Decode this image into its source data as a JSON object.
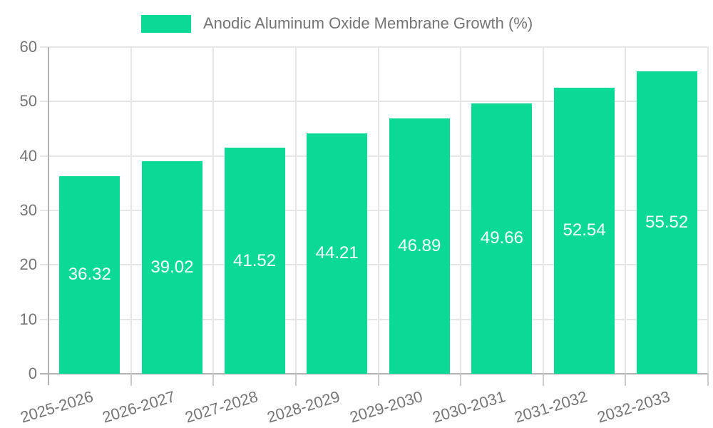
{
  "legend": {
    "label": "Anodic Aluminum Oxide Membrane Growth (%)"
  },
  "colors": {
    "bar": "#0bda96",
    "grid": "#e6e6e6",
    "axis": "#b3b3b3",
    "tick": "#cccccc",
    "axis_text": "#757575",
    "value_label_text": "#ffffff",
    "background": "#ffffff"
  },
  "chart_data": {
    "type": "bar",
    "title": "",
    "series_name": "Anodic Aluminum Oxide Membrane Growth (%)",
    "categories": [
      "2025-2026",
      "2026-2027",
      "2027-2028",
      "2028-2029",
      "2029-2030",
      "2030-2031",
      "2031-2032",
      "2032-2033"
    ],
    "values": [
      36.32,
      39.02,
      41.52,
      44.21,
      46.89,
      49.66,
      52.54,
      55.52
    ],
    "value_labels": [
      "36.32",
      "39.02",
      "41.52",
      "44.21",
      "46.89",
      "49.66",
      "52.54",
      "55.52"
    ],
    "xlabel": "",
    "ylabel": "",
    "ylim": [
      0,
      60
    ],
    "yticks": [
      0,
      10,
      20,
      30,
      40,
      50,
      60
    ],
    "grid": true,
    "legend_position": "top-center",
    "value_labels_inside_bars": true
  }
}
